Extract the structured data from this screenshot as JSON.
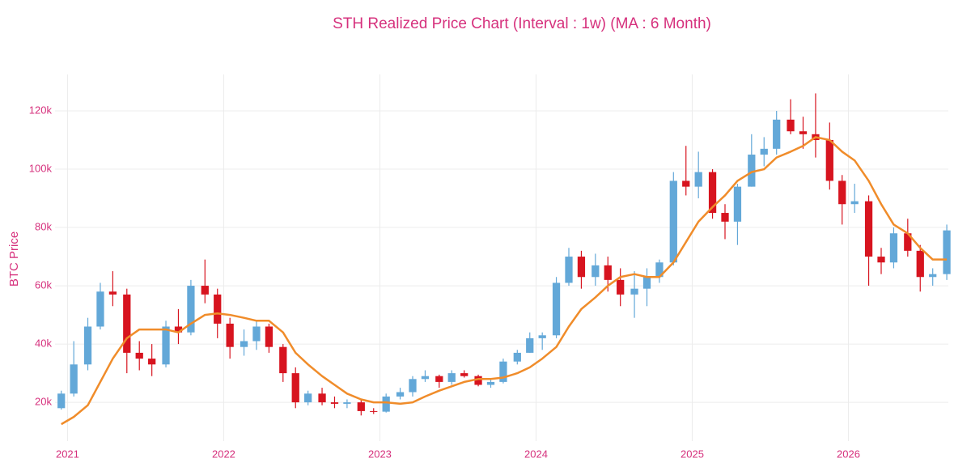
{
  "chart_data": {
    "type": "candlestick",
    "title": "STH Realized Price Chart (Interval : 1w) (MA : 6 Month)",
    "y_label": "BTC Price",
    "x": [
      2020.96,
      2021.04,
      2021.13,
      2021.21,
      2021.29,
      2021.38,
      2021.46,
      2021.54,
      2021.63,
      2021.71,
      2021.79,
      2021.88,
      2021.96,
      2022.04,
      2022.13,
      2022.21,
      2022.29,
      2022.38,
      2022.46,
      2022.54,
      2022.63,
      2022.71,
      2022.79,
      2022.88,
      2022.96,
      2023.04,
      2023.13,
      2023.21,
      2023.29,
      2023.38,
      2023.46,
      2023.54,
      2023.63,
      2023.71,
      2023.79,
      2023.88,
      2023.96,
      2024.04,
      2024.13,
      2024.21,
      2024.29,
      2024.38,
      2024.46,
      2024.54,
      2024.63,
      2024.71,
      2024.79,
      2024.88,
      2024.96,
      2025.04,
      2025.13,
      2025.21,
      2025.29,
      2025.38,
      2025.46,
      2025.54,
      2025.63,
      2025.71,
      2025.79,
      2025.88,
      2025.96,
      2026.04,
      2026.13,
      2026.21,
      2026.29,
      2026.38,
      2026.46,
      2026.54,
      2026.63
    ],
    "open": [
      18000,
      23000,
      33000,
      46000,
      58000,
      57000,
      37000,
      35000,
      33000,
      46000,
      44000,
      60000,
      57000,
      47000,
      39000,
      41000,
      46000,
      39000,
      30000,
      20000,
      23000,
      20000,
      19500,
      20000,
      17000,
      16800,
      22000,
      23500,
      28000,
      29000,
      27000,
      30000,
      29000,
      26000,
      27000,
      34000,
      37000,
      42000,
      43000,
      61000,
      70000,
      63000,
      67000,
      62000,
      57000,
      59000,
      63000,
      68000,
      96000,
      94000,
      99000,
      85000,
      82000,
      94000,
      105000,
      107000,
      117000,
      113000,
      112000,
      110000,
      96000,
      88000,
      89000,
      70000,
      68000,
      78000,
      72000,
      63000,
      64000
    ],
    "high": [
      24000,
      41000,
      49000,
      61000,
      65000,
      59000,
      41000,
      40000,
      48000,
      52000,
      62000,
      69000,
      59000,
      49000,
      45000,
      48000,
      47000,
      40000,
      32000,
      24000,
      25000,
      22000,
      21000,
      21000,
      18000,
      23000,
      25000,
      29000,
      31000,
      29500,
      31000,
      31000,
      29500,
      28000,
      35000,
      38000,
      44000,
      44000,
      63000,
      73000,
      72000,
      71000,
      70000,
      66000,
      65000,
      66000,
      69000,
      99000,
      108000,
      106000,
      100000,
      88000,
      95000,
      112000,
      111000,
      120000,
      124000,
      118000,
      126000,
      116000,
      98000,
      95000,
      91000,
      73000,
      80000,
      83000,
      74000,
      66000,
      81000
    ],
    "low": [
      17500,
      22000,
      31000,
      45000,
      53000,
      30000,
      31000,
      29000,
      32000,
      40000,
      43000,
      54000,
      42000,
      35000,
      36000,
      38000,
      37000,
      27000,
      18000,
      19000,
      19000,
      18000,
      18000,
      15500,
      16000,
      16500,
      21000,
      22000,
      27000,
      25000,
      26000,
      28500,
      25500,
      25000,
      26500,
      33000,
      37000,
      38000,
      42000,
      60000,
      59000,
      60000,
      58000,
      53000,
      49000,
      53000,
      61000,
      67000,
      91000,
      90000,
      83000,
      76000,
      74000,
      94000,
      101000,
      105000,
      112000,
      107000,
      104000,
      93000,
      81000,
      85000,
      60000,
      64000,
      66000,
      70000,
      58000,
      60000,
      62000
    ],
    "close": [
      23000,
      33000,
      46000,
      58000,
      57000,
      37000,
      35000,
      33000,
      46000,
      44000,
      60000,
      57000,
      47000,
      39000,
      41000,
      46000,
      39000,
      30000,
      20000,
      23000,
      20000,
      19500,
      20000,
      17000,
      16800,
      22000,
      23500,
      28000,
      29000,
      27000,
      30000,
      29000,
      26000,
      27000,
      34000,
      37000,
      42000,
      43000,
      61000,
      70000,
      63000,
      67000,
      62000,
      57000,
      59000,
      63000,
      68000,
      96000,
      94000,
      99000,
      85000,
      82000,
      94000,
      105000,
      107000,
      117000,
      113000,
      112000,
      110000,
      96000,
      88000,
      89000,
      70000,
      68000,
      78000,
      72000,
      63000,
      64000,
      79000
    ],
    "up_color": "#63a8d8",
    "down_color": "#d7141f",
    "ma": {
      "color": "#f08c2a",
      "values": [
        12500,
        15000,
        19000,
        27000,
        35000,
        42000,
        45000,
        45000,
        45000,
        44000,
        47000,
        50000,
        50500,
        50000,
        49000,
        48000,
        48000,
        44000,
        37000,
        33000,
        29000,
        26000,
        23000,
        21000,
        20000,
        20000,
        19500,
        20000,
        22000,
        24000,
        25500,
        27000,
        28000,
        28000,
        28500,
        30000,
        32000,
        35000,
        39000,
        46000,
        52000,
        56000,
        60000,
        63000,
        64000,
        63000,
        63000,
        68000,
        75000,
        82000,
        87000,
        91000,
        96000,
        99000,
        100000,
        104000,
        106000,
        108000,
        111000,
        110000,
        106000,
        103000,
        96000,
        88000,
        81000,
        78000,
        73000,
        69000,
        69000
      ]
    },
    "xlim": [
      2020.92,
      2026.64
    ],
    "xticks": [
      2021,
      2022,
      2023,
      2024,
      2025,
      2026
    ],
    "ylim": [
      6700,
      132500
    ],
    "yticks": [
      {
        "value": 20000,
        "label": "20k"
      },
      {
        "value": 40000,
        "label": "40k"
      },
      {
        "value": 60000,
        "label": "60k"
      },
      {
        "value": 80000,
        "label": "80k"
      },
      {
        "value": 100000,
        "label": "100k"
      },
      {
        "value": 120000,
        "label": "120k"
      }
    ],
    "grid": true
  }
}
